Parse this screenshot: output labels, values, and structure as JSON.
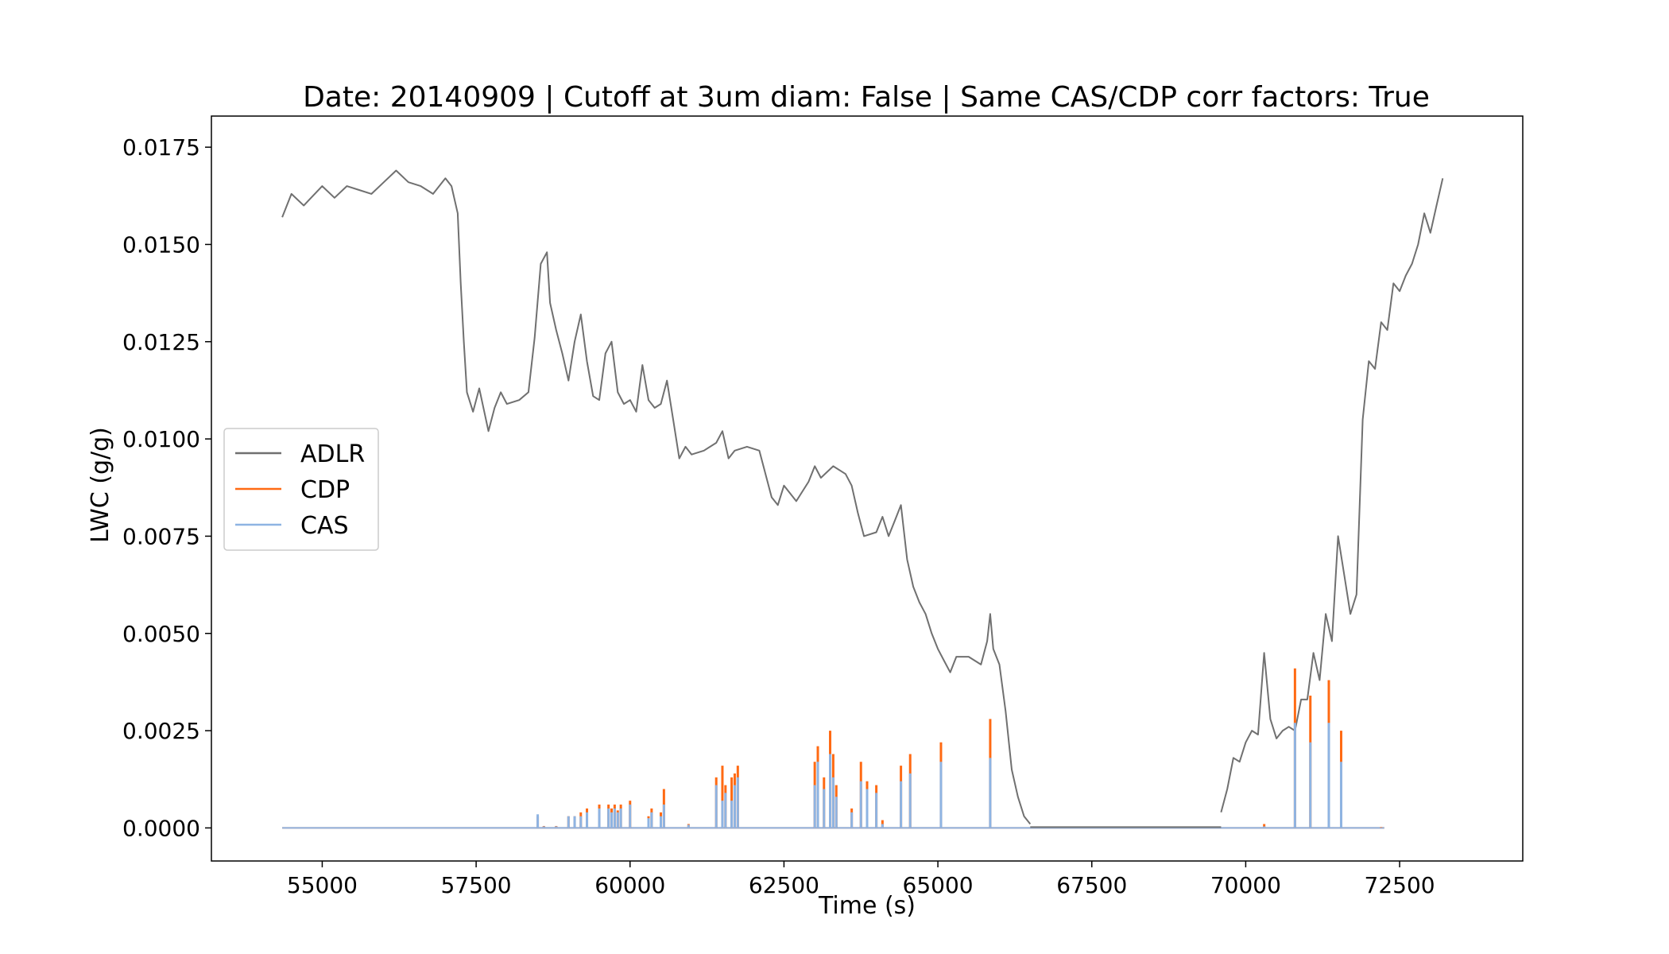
{
  "chart_data": {
    "type": "line",
    "title": "Date: 20140909 | Cutoff at 3um diam: False | Same CAS/CDP corr factors: True",
    "xlabel": "Time (s)",
    "ylabel": "LWC (g/g)",
    "xlim": [
      53200,
      74500
    ],
    "ylim": [
      -0.00085,
      0.0183
    ],
    "xticks": [
      55000,
      57500,
      60000,
      62500,
      65000,
      67500,
      70000,
      72500
    ],
    "xtick_labels": [
      "55000",
      "57500",
      "60000",
      "62500",
      "65000",
      "67500",
      "70000",
      "72500"
    ],
    "yticks": [
      0.0,
      0.0025,
      0.005,
      0.0075,
      0.01,
      0.0125,
      0.015,
      0.0175
    ],
    "ytick_labels": [
      "0.0000",
      "0.0025",
      "0.0050",
      "0.0075",
      "0.0100",
      "0.0125",
      "0.0150",
      "0.0175"
    ],
    "grid": false,
    "legend_position": "center-left",
    "series": [
      {
        "name": "ADLR",
        "color": "#707070",
        "x": [
          54350,
          54500,
          54700,
          55000,
          55200,
          55400,
          55600,
          55800,
          56000,
          56200,
          56400,
          56600,
          56800,
          57000,
          57100,
          57200,
          57250,
          57300,
          57350,
          57450,
          57550,
          57700,
          57800,
          57900,
          58000,
          58200,
          58350,
          58450,
          58550,
          58650,
          58700,
          58800,
          58900,
          59000,
          59100,
          59200,
          59300,
          59400,
          59500,
          59600,
          59700,
          59800,
          59900,
          60000,
          60100,
          60200,
          60300,
          60400,
          60500,
          60600,
          60700,
          60800,
          60900,
          61000,
          61200,
          61400,
          61500,
          61600,
          61700,
          61900,
          62100,
          62300,
          62400,
          62500,
          62700,
          62900,
          63000,
          63100,
          63300,
          63500,
          63600,
          63700,
          63800,
          64000,
          64100,
          64200,
          64300,
          64400,
          64500,
          64600,
          64700,
          64800,
          64900,
          65000,
          65100,
          65200,
          65300,
          65500,
          65700,
          65800,
          65850,
          65900,
          66000,
          66100,
          66200,
          66300,
          66400,
          66500
        ],
        "y": [
          0.0157,
          0.0163,
          0.016,
          0.0165,
          0.0162,
          0.0165,
          0.0164,
          0.0163,
          0.0166,
          0.0169,
          0.0166,
          0.0165,
          0.0163,
          0.0167,
          0.0165,
          0.0158,
          0.014,
          0.0125,
          0.0112,
          0.0107,
          0.0113,
          0.0102,
          0.0108,
          0.0112,
          0.0109,
          0.011,
          0.0112,
          0.0126,
          0.0145,
          0.0148,
          0.0135,
          0.0128,
          0.0122,
          0.0115,
          0.0125,
          0.0132,
          0.012,
          0.0111,
          0.011,
          0.0122,
          0.0125,
          0.0112,
          0.0109,
          0.011,
          0.0107,
          0.0119,
          0.011,
          0.0108,
          0.0109,
          0.0115,
          0.0105,
          0.0095,
          0.0098,
          0.0096,
          0.0097,
          0.0099,
          0.0102,
          0.0095,
          0.0097,
          0.0098,
          0.0097,
          0.0085,
          0.0083,
          0.0088,
          0.0084,
          0.0089,
          0.0093,
          0.009,
          0.0093,
          0.0091,
          0.0088,
          0.0081,
          0.0075,
          0.0076,
          0.008,
          0.0075,
          0.0079,
          0.0083,
          0.0069,
          0.0062,
          0.0058,
          0.0055,
          0.005,
          0.0046,
          0.0043,
          0.004,
          0.0044,
          0.0044,
          0.0042,
          0.0048,
          0.0055,
          0.0046,
          0.0042,
          0.003,
          0.0015,
          0.0008,
          0.0003,
          0.0001
        ]
      },
      {
        "name": "ADLR",
        "color": "#707070",
        "x": [
          69600,
          69700,
          69800,
          69900,
          70000,
          70100,
          70200,
          70300,
          70400,
          70500,
          70600,
          70700,
          70800,
          70900,
          71000,
          71100,
          71200,
          71300,
          71400,
          71500,
          71600,
          71700,
          71800,
          71900,
          72000,
          72100,
          72200,
          72300,
          72400,
          72500,
          72600,
          72700,
          72800,
          72900,
          73000,
          73100,
          73200
        ],
        "y": [
          0.0004,
          0.001,
          0.0018,
          0.0017,
          0.0022,
          0.0025,
          0.0024,
          0.0045,
          0.0028,
          0.0023,
          0.0025,
          0.0026,
          0.0025,
          0.0033,
          0.0033,
          0.0045,
          0.0038,
          0.0055,
          0.0048,
          0.0075,
          0.0065,
          0.0055,
          0.006,
          0.0105,
          0.012,
          0.0118,
          0.013,
          0.0128,
          0.014,
          0.0138,
          0.0142,
          0.0145,
          0.015,
          0.0158,
          0.0153,
          0.016,
          0.0167
        ]
      },
      {
        "name": "CDP",
        "color": "#ff6a13",
        "x": [
          58500,
          58600,
          58800,
          59000,
          59100,
          59200,
          59300,
          59500,
          59650,
          59700,
          59750,
          59800,
          59850,
          60000,
          60300,
          60350,
          60500,
          60550,
          60950,
          61400,
          61500,
          61550,
          61650,
          61700,
          61750,
          63000,
          63050,
          63150,
          63250,
          63300,
          63350,
          63600,
          63750,
          63850,
          64000,
          64100,
          64400,
          64550,
          65050,
          65850,
          70300,
          70800,
          71050,
          71350,
          71550,
          72200
        ],
        "y": [
          0.0003,
          5e-05,
          5e-05,
          0.0003,
          0.0003,
          0.0004,
          0.0005,
          0.0006,
          0.0006,
          0.0005,
          0.0006,
          0.00045,
          0.0006,
          0.0007,
          0.0003,
          0.0005,
          0.0004,
          0.001,
          0.0001,
          0.0013,
          0.0016,
          0.0011,
          0.0013,
          0.0014,
          0.0016,
          0.0017,
          0.0021,
          0.0013,
          0.0025,
          0.0019,
          0.0011,
          0.0005,
          0.0017,
          0.0012,
          0.0011,
          0.0002,
          0.0016,
          0.0019,
          0.0022,
          0.0028,
          0.0001,
          0.0041,
          0.0034,
          0.0038,
          0.0025,
          2e-05
        ]
      },
      {
        "name": "CAS",
        "color": "#8eb4e3",
        "x": [
          58500,
          58600,
          58800,
          59000,
          59100,
          59200,
          59300,
          59500,
          59650,
          59700,
          59750,
          59800,
          59850,
          60000,
          60300,
          60350,
          60500,
          60550,
          60950,
          61400,
          61500,
          61550,
          61650,
          61700,
          61750,
          63000,
          63050,
          63150,
          63250,
          63300,
          63350,
          63600,
          63750,
          63850,
          64000,
          64100,
          64400,
          64550,
          65050,
          65850,
          70300,
          70800,
          71050,
          71350,
          71550,
          72200
        ],
        "y": [
          0.00035,
          4e-05,
          4e-05,
          0.0003,
          0.0003,
          0.0003,
          0.0004,
          0.0005,
          0.0005,
          0.0004,
          0.0005,
          0.0004,
          0.0005,
          0.0006,
          0.00025,
          0.0004,
          0.0003,
          0.0006,
          8e-05,
          0.0011,
          0.0007,
          0.0009,
          0.0007,
          0.0011,
          0.0013,
          0.0011,
          0.0017,
          0.001,
          0.0019,
          0.0013,
          0.0008,
          0.0004,
          0.0012,
          0.001,
          0.0009,
          0.0001,
          0.0012,
          0.0014,
          0.0017,
          0.0018,
          4e-05,
          0.0027,
          0.0022,
          0.0027,
          0.0017,
          1e-05
        ]
      }
    ]
  }
}
